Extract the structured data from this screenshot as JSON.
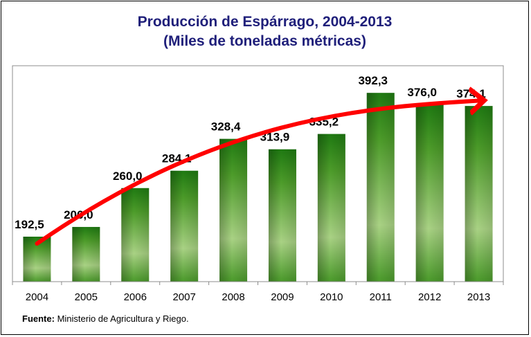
{
  "chart_data": {
    "type": "bar",
    "title": "Producción de Espárrago, 2004-2013",
    "subtitle": "(Miles de toneladas métricas)",
    "categories": [
      "2004",
      "2005",
      "2006",
      "2007",
      "2008",
      "2009",
      "2010",
      "2011",
      "2012",
      "2013"
    ],
    "values": [
      192.5,
      206.0,
      260.0,
      284.1,
      328.4,
      313.9,
      335.2,
      392.3,
      376.0,
      374.1
    ],
    "value_labels": [
      "192,5",
      "206,0",
      "260,0",
      "284,1",
      "328,4",
      "313,9",
      "335,2",
      "392,3",
      "376,0",
      "374,1"
    ],
    "ylim": [
      130,
      430
    ],
    "xlabel": "",
    "ylabel": "",
    "grid": false,
    "legend": "none",
    "trend_arrow": true
  },
  "source": {
    "label": "Fuente:",
    "text": " Ministerio de Agricultura y Riego."
  },
  "colors": {
    "title": "#1f1f7a",
    "bar_dark": "#1f7a12",
    "bar_light": "#b3d98a",
    "arrow": "#ff0000",
    "plot_border": "#8c8c8c"
  }
}
